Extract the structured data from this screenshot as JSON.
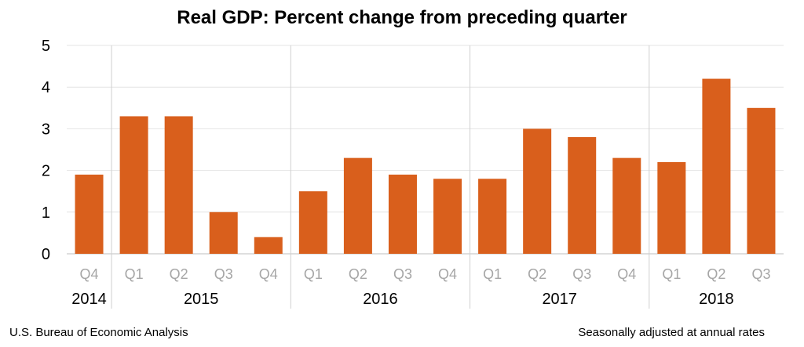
{
  "chart_data": {
    "type": "bar",
    "title": "Real GDP:  Percent change from preceding quarter",
    "categories": [
      "Q4",
      "Q1",
      "Q2",
      "Q3",
      "Q4",
      "Q1",
      "Q2",
      "Q3",
      "Q4",
      "Q1",
      "Q2",
      "Q3",
      "Q4",
      "Q1",
      "Q2",
      "Q3"
    ],
    "values": [
      1.9,
      3.3,
      3.3,
      1.0,
      0.4,
      1.5,
      2.3,
      1.9,
      1.8,
      1.8,
      3.0,
      2.8,
      2.3,
      2.2,
      4.2,
      3.5
    ],
    "year_groups": [
      {
        "label": "2014",
        "start": 0,
        "count": 1
      },
      {
        "label": "2015",
        "start": 1,
        "count": 4
      },
      {
        "label": "2016",
        "start": 5,
        "count": 4
      },
      {
        "label": "2017",
        "start": 9,
        "count": 4
      },
      {
        "label": "2018",
        "start": 13,
        "count": 3
      }
    ],
    "ylim": [
      0,
      5
    ],
    "yticks": [
      0,
      1,
      2,
      3,
      4,
      5
    ],
    "xlabel": "",
    "ylabel": "",
    "grid": true,
    "bar_color": "#d95f1c"
  },
  "footer": {
    "source": "U.S. Bureau of Economic Analysis",
    "note": "Seasonally adjusted at annual rates"
  }
}
